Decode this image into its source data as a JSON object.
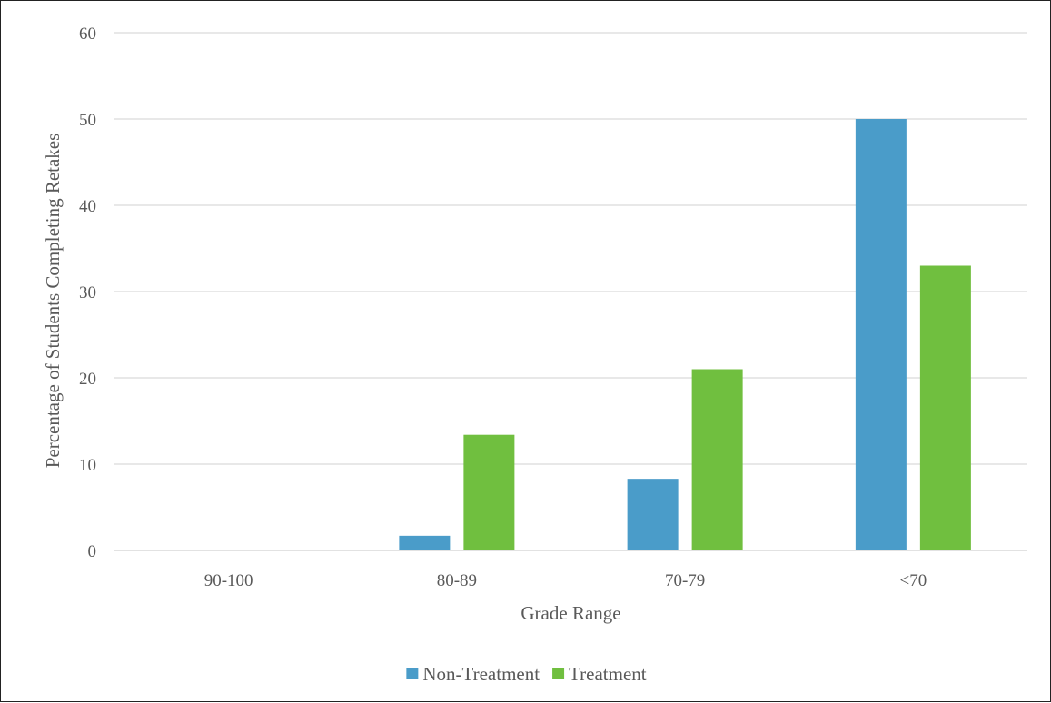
{
  "chart_data": {
    "type": "bar",
    "title": "",
    "xlabel": "Grade Range",
    "ylabel": "Percentage of Students Completing Retakes",
    "categories": [
      "90-100",
      "80-89",
      "70-79",
      "<70"
    ],
    "series": [
      {
        "name": "Non-Treatment",
        "values": [
          0,
          1.7,
          8.3,
          50
        ],
        "color": "#4a9cc9"
      },
      {
        "name": "Treatment",
        "values": [
          0,
          13.4,
          21,
          33
        ],
        "color": "#70bf3f"
      }
    ],
    "ylim": [
      0,
      60
    ],
    "yticks": [
      0,
      10,
      20,
      30,
      40,
      50,
      60
    ],
    "ytick_labels": [
      "0",
      "10",
      "20",
      "30",
      "40",
      "50",
      "60"
    ],
    "grid": true,
    "legend_position": "bottom"
  }
}
